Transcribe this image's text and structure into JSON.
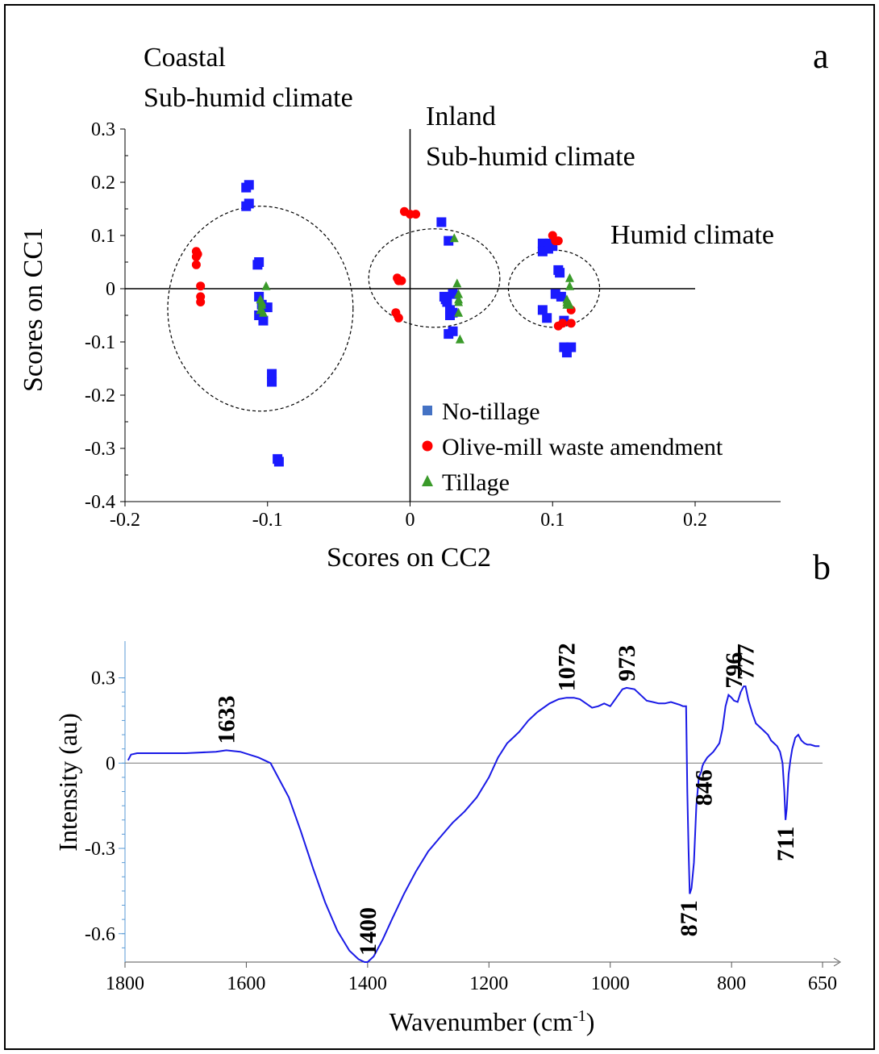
{
  "chart_data": [
    {
      "panel": "a",
      "type": "scatter",
      "xlabel": "Scores on CC2",
      "ylabel": "Scores on CC1",
      "xlim": [
        -0.2,
        0.25
      ],
      "ylim": [
        -0.4,
        0.3
      ],
      "x_ticks": [
        "-0.2",
        "-0.1",
        "0",
        "0.1",
        "0.2"
      ],
      "y_ticks": [
        "0.3",
        "0.2",
        "0.1",
        "0",
        "-0.1",
        "-0.2",
        "-0.3",
        "-0.4"
      ],
      "groups": [
        {
          "label_lines": [
            "Coastal",
            "Sub-humid climate"
          ]
        },
        {
          "label_lines": [
            "Inland",
            "Sub-humid climate"
          ]
        },
        {
          "label_lines": [
            "Humid climate"
          ]
        }
      ],
      "legend": "inside, lower-right",
      "series": [
        {
          "name": "No-tillage",
          "marker": "square",
          "color": "#1a1aff",
          "points": [
            [
              -0.113,
              0.195
            ],
            [
              -0.115,
              0.19
            ],
            [
              -0.113,
              0.16
            ],
            [
              -0.115,
              0.155
            ],
            [
              -0.106,
              0.05
            ],
            [
              -0.107,
              0.045
            ],
            [
              -0.106,
              -0.015
            ],
            [
              -0.106,
              -0.05
            ],
            [
              -0.104,
              -0.03
            ],
            [
              -0.103,
              -0.06
            ],
            [
              -0.1,
              -0.035
            ],
            [
              -0.097,
              -0.16
            ],
            [
              -0.097,
              -0.175
            ],
            [
              -0.093,
              -0.32
            ],
            [
              -0.092,
              -0.325
            ],
            [
              0.022,
              0.125
            ],
            [
              0.027,
              0.09
            ],
            [
              0.024,
              -0.015
            ],
            [
              0.026,
              -0.025
            ],
            [
              0.028,
              -0.04
            ],
            [
              0.028,
              -0.05
            ],
            [
              0.025,
              -0.02
            ],
            [
              0.03,
              -0.045
            ],
            [
              0.03,
              -0.08
            ],
            [
              0.027,
              -0.085
            ],
            [
              0.03,
              -0.01
            ],
            [
              0.093,
              0.085
            ],
            [
              0.095,
              0.08
            ],
            [
              0.097,
              0.075
            ],
            [
              0.098,
              0.085
            ],
            [
              0.093,
              0.07
            ],
            [
              0.1,
              0.08
            ],
            [
              0.104,
              0.035
            ],
            [
              0.105,
              0.03
            ],
            [
              0.102,
              -0.01
            ],
            [
              0.106,
              -0.015
            ],
            [
              0.093,
              -0.04
            ],
            [
              0.096,
              -0.055
            ],
            [
              0.108,
              -0.06
            ],
            [
              0.108,
              -0.11
            ],
            [
              0.113,
              -0.11
            ],
            [
              0.11,
              -0.12
            ]
          ]
        },
        {
          "name": "Olive-mill waste amendment",
          "marker": "circle",
          "color": "#ff0000",
          "points": [
            [
              -0.15,
              0.07
            ],
            [
              -0.15,
              0.06
            ],
            [
              -0.149,
              0.065
            ],
            [
              -0.15,
              0.045
            ],
            [
              -0.147,
              0.005
            ],
            [
              -0.147,
              -0.015
            ],
            [
              -0.147,
              -0.025
            ],
            [
              -0.004,
              0.145
            ],
            [
              0.0,
              0.14
            ],
            [
              0.004,
              0.14
            ],
            [
              -0.009,
              0.02
            ],
            [
              -0.008,
              0.015
            ],
            [
              -0.006,
              0.015
            ],
            [
              -0.01,
              -0.045
            ],
            [
              -0.008,
              -0.055
            ],
            [
              0.1,
              0.1
            ],
            [
              0.102,
              0.09
            ],
            [
              0.104,
              0.09
            ],
            [
              0.107,
              -0.065
            ],
            [
              0.104,
              -0.07
            ],
            [
              0.113,
              -0.04
            ],
            [
              0.113,
              -0.065
            ]
          ]
        },
        {
          "name": "Tillage",
          "marker": "triangle",
          "color": "#3a9a2a",
          "points": [
            [
              -0.101,
              0.005
            ],
            [
              -0.105,
              -0.02
            ],
            [
              -0.104,
              -0.025
            ],
            [
              -0.105,
              -0.04
            ],
            [
              -0.103,
              -0.045
            ],
            [
              -0.104,
              -0.03
            ],
            [
              0.031,
              0.095
            ],
            [
              0.033,
              0.01
            ],
            [
              0.034,
              -0.01
            ],
            [
              0.034,
              -0.02
            ],
            [
              0.034,
              -0.025
            ],
            [
              0.034,
              -0.045
            ],
            [
              0.035,
              -0.095
            ],
            [
              0.112,
              0.02
            ],
            [
              0.112,
              0.005
            ],
            [
              0.11,
              -0.02
            ],
            [
              0.11,
              -0.025
            ],
            [
              0.112,
              -0.03
            ],
            [
              0.11,
              -0.03
            ]
          ]
        }
      ]
    },
    {
      "panel": "b",
      "type": "line",
      "xlabel_main": "Wavenumber (cm",
      "xlabel_sup": "-1",
      "xlabel_end": ")",
      "ylabel": "Intensity (au)",
      "xlim": [
        1800,
        650
      ],
      "ylim": [
        -0.7,
        0.33
      ],
      "x_ticks": [
        1800,
        1600,
        1400,
        1200,
        1000,
        800,
        650
      ],
      "y_ticks": [
        0.3,
        0,
        -0.3,
        -0.6
      ],
      "y_tick_labels": [
        "0.3",
        "0",
        "-0.3",
        "-0.6"
      ],
      "line_color": "#1a1ae6",
      "series": [
        {
          "x": [
            1795,
            1790,
            1780,
            1760,
            1700,
            1650,
            1633,
            1610,
            1580,
            1560,
            1550,
            1530,
            1510,
            1490,
            1470,
            1450,
            1430,
            1415,
            1405,
            1400,
            1390,
            1375,
            1360,
            1340,
            1320,
            1300,
            1280,
            1260,
            1240,
            1220,
            1200,
            1185,
            1170,
            1160,
            1150,
            1135,
            1120,
            1100,
            1085,
            1072,
            1060,
            1050,
            1040,
            1030,
            1020,
            1010,
            1000,
            990,
            980,
            973,
            960,
            950,
            940,
            930,
            920,
            910,
            900,
            885,
            880,
            875,
            873,
            871,
            869,
            866,
            862,
            858,
            854,
            850,
            848,
            846,
            840,
            830,
            820,
            815,
            810,
            805,
            800,
            796,
            790,
            785,
            780,
            777,
            772,
            765,
            760,
            750,
            740,
            735,
            730,
            725,
            720,
            716,
            713,
            711,
            709,
            706,
            703,
            700,
            695,
            690,
            685,
            680,
            675,
            670,
            662,
            655
          ],
          "y": [
            0.01,
            0.03,
            0.035,
            0.035,
            0.035,
            0.04,
            0.045,
            0.04,
            0.02,
            0.0,
            -0.04,
            -0.12,
            -0.24,
            -0.37,
            -0.49,
            -0.59,
            -0.66,
            -0.69,
            -0.7,
            -0.7,
            -0.68,
            -0.62,
            -0.55,
            -0.46,
            -0.38,
            -0.31,
            -0.26,
            -0.21,
            -0.17,
            -0.12,
            -0.05,
            0.02,
            0.07,
            0.09,
            0.11,
            0.15,
            0.18,
            0.21,
            0.225,
            0.23,
            0.23,
            0.225,
            0.21,
            0.195,
            0.2,
            0.21,
            0.2,
            0.23,
            0.26,
            0.265,
            0.26,
            0.24,
            0.22,
            0.215,
            0.21,
            0.21,
            0.215,
            0.205,
            0.2,
            0.2,
            -0.1,
            -0.3,
            -0.46,
            -0.44,
            -0.35,
            -0.15,
            -0.05,
            -0.03,
            -0.01,
            0.0,
            0.02,
            0.04,
            0.07,
            0.12,
            0.2,
            0.24,
            0.23,
            0.22,
            0.215,
            0.25,
            0.27,
            0.27,
            0.22,
            0.17,
            0.14,
            0.12,
            0.1,
            0.08,
            0.07,
            0.06,
            0.04,
            0.0,
            -0.1,
            -0.2,
            -0.16,
            -0.04,
            0.01,
            0.05,
            0.09,
            0.1,
            0.08,
            0.07,
            0.065,
            0.065,
            0.06,
            0.06
          ]
        }
      ],
      "peak_labels": [
        {
          "text": "1633",
          "x": 1633,
          "y": 0.045,
          "place": "above"
        },
        {
          "text": "1400",
          "x": 1400,
          "y": -0.7,
          "place": "above"
        },
        {
          "text": "1072",
          "x": 1072,
          "y": 0.23,
          "place": "above"
        },
        {
          "text": "973",
          "x": 973,
          "y": 0.265,
          "place": "above"
        },
        {
          "text": "871",
          "x": 871,
          "y": -0.46,
          "place": "below"
        },
        {
          "text": "846",
          "x": 846,
          "y": 0.0,
          "place": "below"
        },
        {
          "text": "796",
          "x": 796,
          "y": 0.24,
          "place": "above"
        },
        {
          "text": "777",
          "x": 777,
          "y": 0.27,
          "place": "above"
        },
        {
          "text": "711",
          "x": 711,
          "y": -0.2,
          "place": "below"
        }
      ]
    }
  ]
}
